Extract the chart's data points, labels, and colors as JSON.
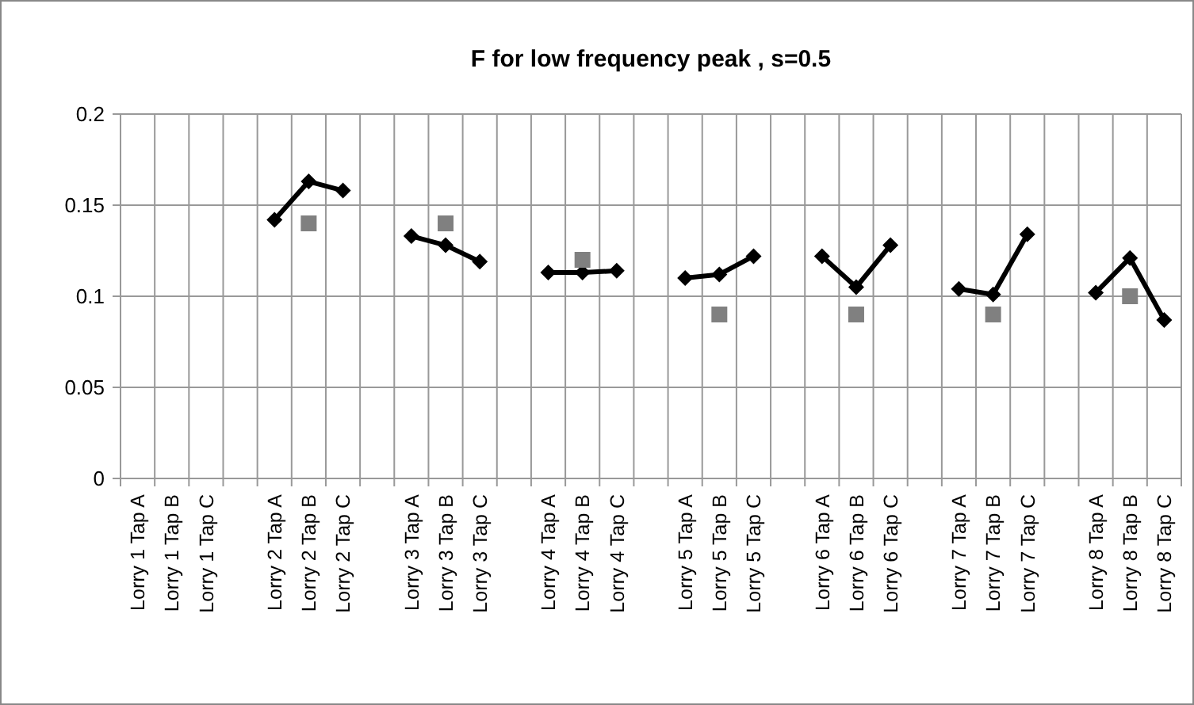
{
  "chart_data": {
    "type": "line",
    "title": "F for low frequency peak , s=0.5",
    "categories": [
      "Lorry  1 Tap A",
      "Lorry  1 Tap B",
      "Lorry  1 Tap C",
      null,
      "Lorry  2 Tap A",
      "Lorry  2 Tap B",
      "Lorry  2 Tap C",
      null,
      "Lorry  3 Tap A",
      "Lorry  3 Tap B",
      "Lorry  3 Tap C",
      null,
      "Lorry  4 Tap A",
      "Lorry  4 Tap B",
      "Lorry  4 Tap C",
      null,
      "Lorry  5 Tap A",
      "Lorry  5 Tap B",
      "Lorry  5 Tap C",
      null,
      "Lorry  6 Tap A",
      "Lorry  6 Tap B",
      "Lorry  6 Tap C",
      null,
      "Lorry  7 Tap A",
      "Lorry  7 Tap B",
      "Lorry  7 Tap C",
      null,
      "Lorry  8 Tap A",
      "Lorry  8 Tap B",
      "Lorry  8 Tap C"
    ],
    "series": [
      {
        "color": "#000000",
        "marker": "diamond",
        "values": [
          null,
          null,
          null,
          null,
          0.142,
          0.163,
          0.158,
          null,
          0.133,
          0.128,
          0.119,
          null,
          0.113,
          0.113,
          0.114,
          null,
          0.11,
          0.112,
          0.122,
          null,
          0.122,
          0.105,
          0.128,
          null,
          0.104,
          0.101,
          0.134,
          null,
          0.102,
          0.121,
          0.087
        ]
      },
      {
        "type": "scatter",
        "color": "#808080",
        "marker": "square",
        "values": [
          null,
          null,
          null,
          null,
          null,
          0.14,
          null,
          null,
          null,
          0.14,
          null,
          null,
          null,
          0.12,
          null,
          null,
          null,
          0.09,
          null,
          null,
          null,
          0.09,
          null,
          null,
          null,
          0.09,
          null,
          null,
          null,
          0.1,
          null
        ]
      }
    ],
    "ylim": [
      0,
      0.2
    ],
    "yticks": [
      0,
      0.05,
      0.1,
      0.15,
      0.2
    ],
    "grid": true
  }
}
